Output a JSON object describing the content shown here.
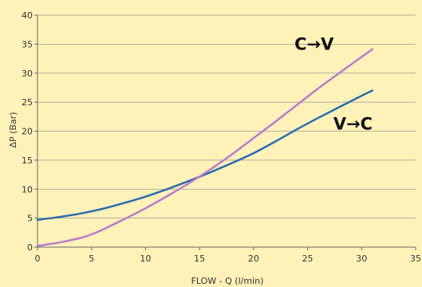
{
  "chart_data": {
    "type": "line",
    "title": "",
    "xlabel": "FLOW - Q (l/min)",
    "ylabel": "ΔP (Bar)",
    "xlim": [
      0,
      35
    ],
    "ylim": [
      0,
      40
    ],
    "xticks": [
      0,
      5,
      10,
      15,
      20,
      25,
      30,
      35
    ],
    "yticks": [
      0,
      5,
      10,
      15,
      20,
      25,
      30,
      35,
      40
    ],
    "grid": "horizontal",
    "series": [
      {
        "name": "V→C",
        "color": "#2b6cb0",
        "x": [
          0,
          2,
          4,
          6,
          8,
          10,
          12,
          14,
          16,
          18,
          20,
          22,
          24,
          26,
          28,
          30,
          31
        ],
        "y": [
          4.7,
          5.2,
          5.8,
          6.6,
          7.6,
          8.7,
          10.0,
          11.4,
          12.9,
          14.5,
          16.2,
          18.2,
          20.3,
          22.3,
          24.2,
          26.1,
          27.0
        ]
      },
      {
        "name": "C→V",
        "color": "#b87acc",
        "x": [
          0,
          2,
          4,
          5,
          6,
          8,
          10,
          12,
          14,
          16,
          18,
          20,
          22,
          24,
          26,
          28,
          30,
          31
        ],
        "y": [
          0.2,
          0.8,
          1.6,
          2.2,
          3.0,
          4.8,
          6.7,
          8.8,
          11.0,
          13.4,
          16.0,
          18.8,
          21.6,
          24.5,
          27.4,
          30.1,
          32.8,
          34.1
        ]
      }
    ],
    "annotations": [
      {
        "text": "C→V",
        "x": 25.6,
        "y": 34.0
      },
      {
        "text": "V→C",
        "x": 29.2,
        "y": 20.3
      }
    ]
  },
  "colors": {
    "background": "#fff2b8",
    "axis": "#666666",
    "grid": "#999999"
  }
}
